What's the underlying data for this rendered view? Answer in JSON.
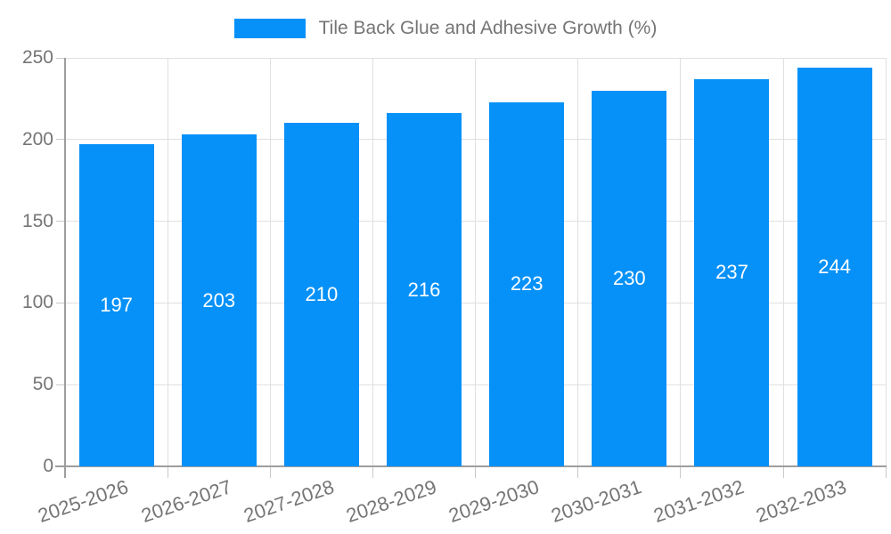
{
  "chart_data": {
    "type": "bar",
    "title": "Tile Back Glue and Adhesive Growth (%)",
    "categories": [
      "2025-2026",
      "2026-2027",
      "2027-2028",
      "2028-2029",
      "2029-2030",
      "2030-2031",
      "2031-2032",
      "2032-2033"
    ],
    "values": [
      197,
      203,
      210,
      216,
      223,
      230,
      237,
      244
    ],
    "xlabel": "",
    "ylabel": "",
    "ylim": [
      0,
      250
    ],
    "yticks": [
      0,
      50,
      100,
      150,
      200,
      250
    ],
    "grid": true,
    "legend_position": "top-center",
    "bar_labels_inside": true,
    "colors": {
      "bar": "#0691F8",
      "value_label": "#FFFFFF",
      "text": "#757575",
      "axis": "#9E9E9E",
      "grid": "#E0E0E0",
      "tick": "#C9C9C9"
    }
  }
}
